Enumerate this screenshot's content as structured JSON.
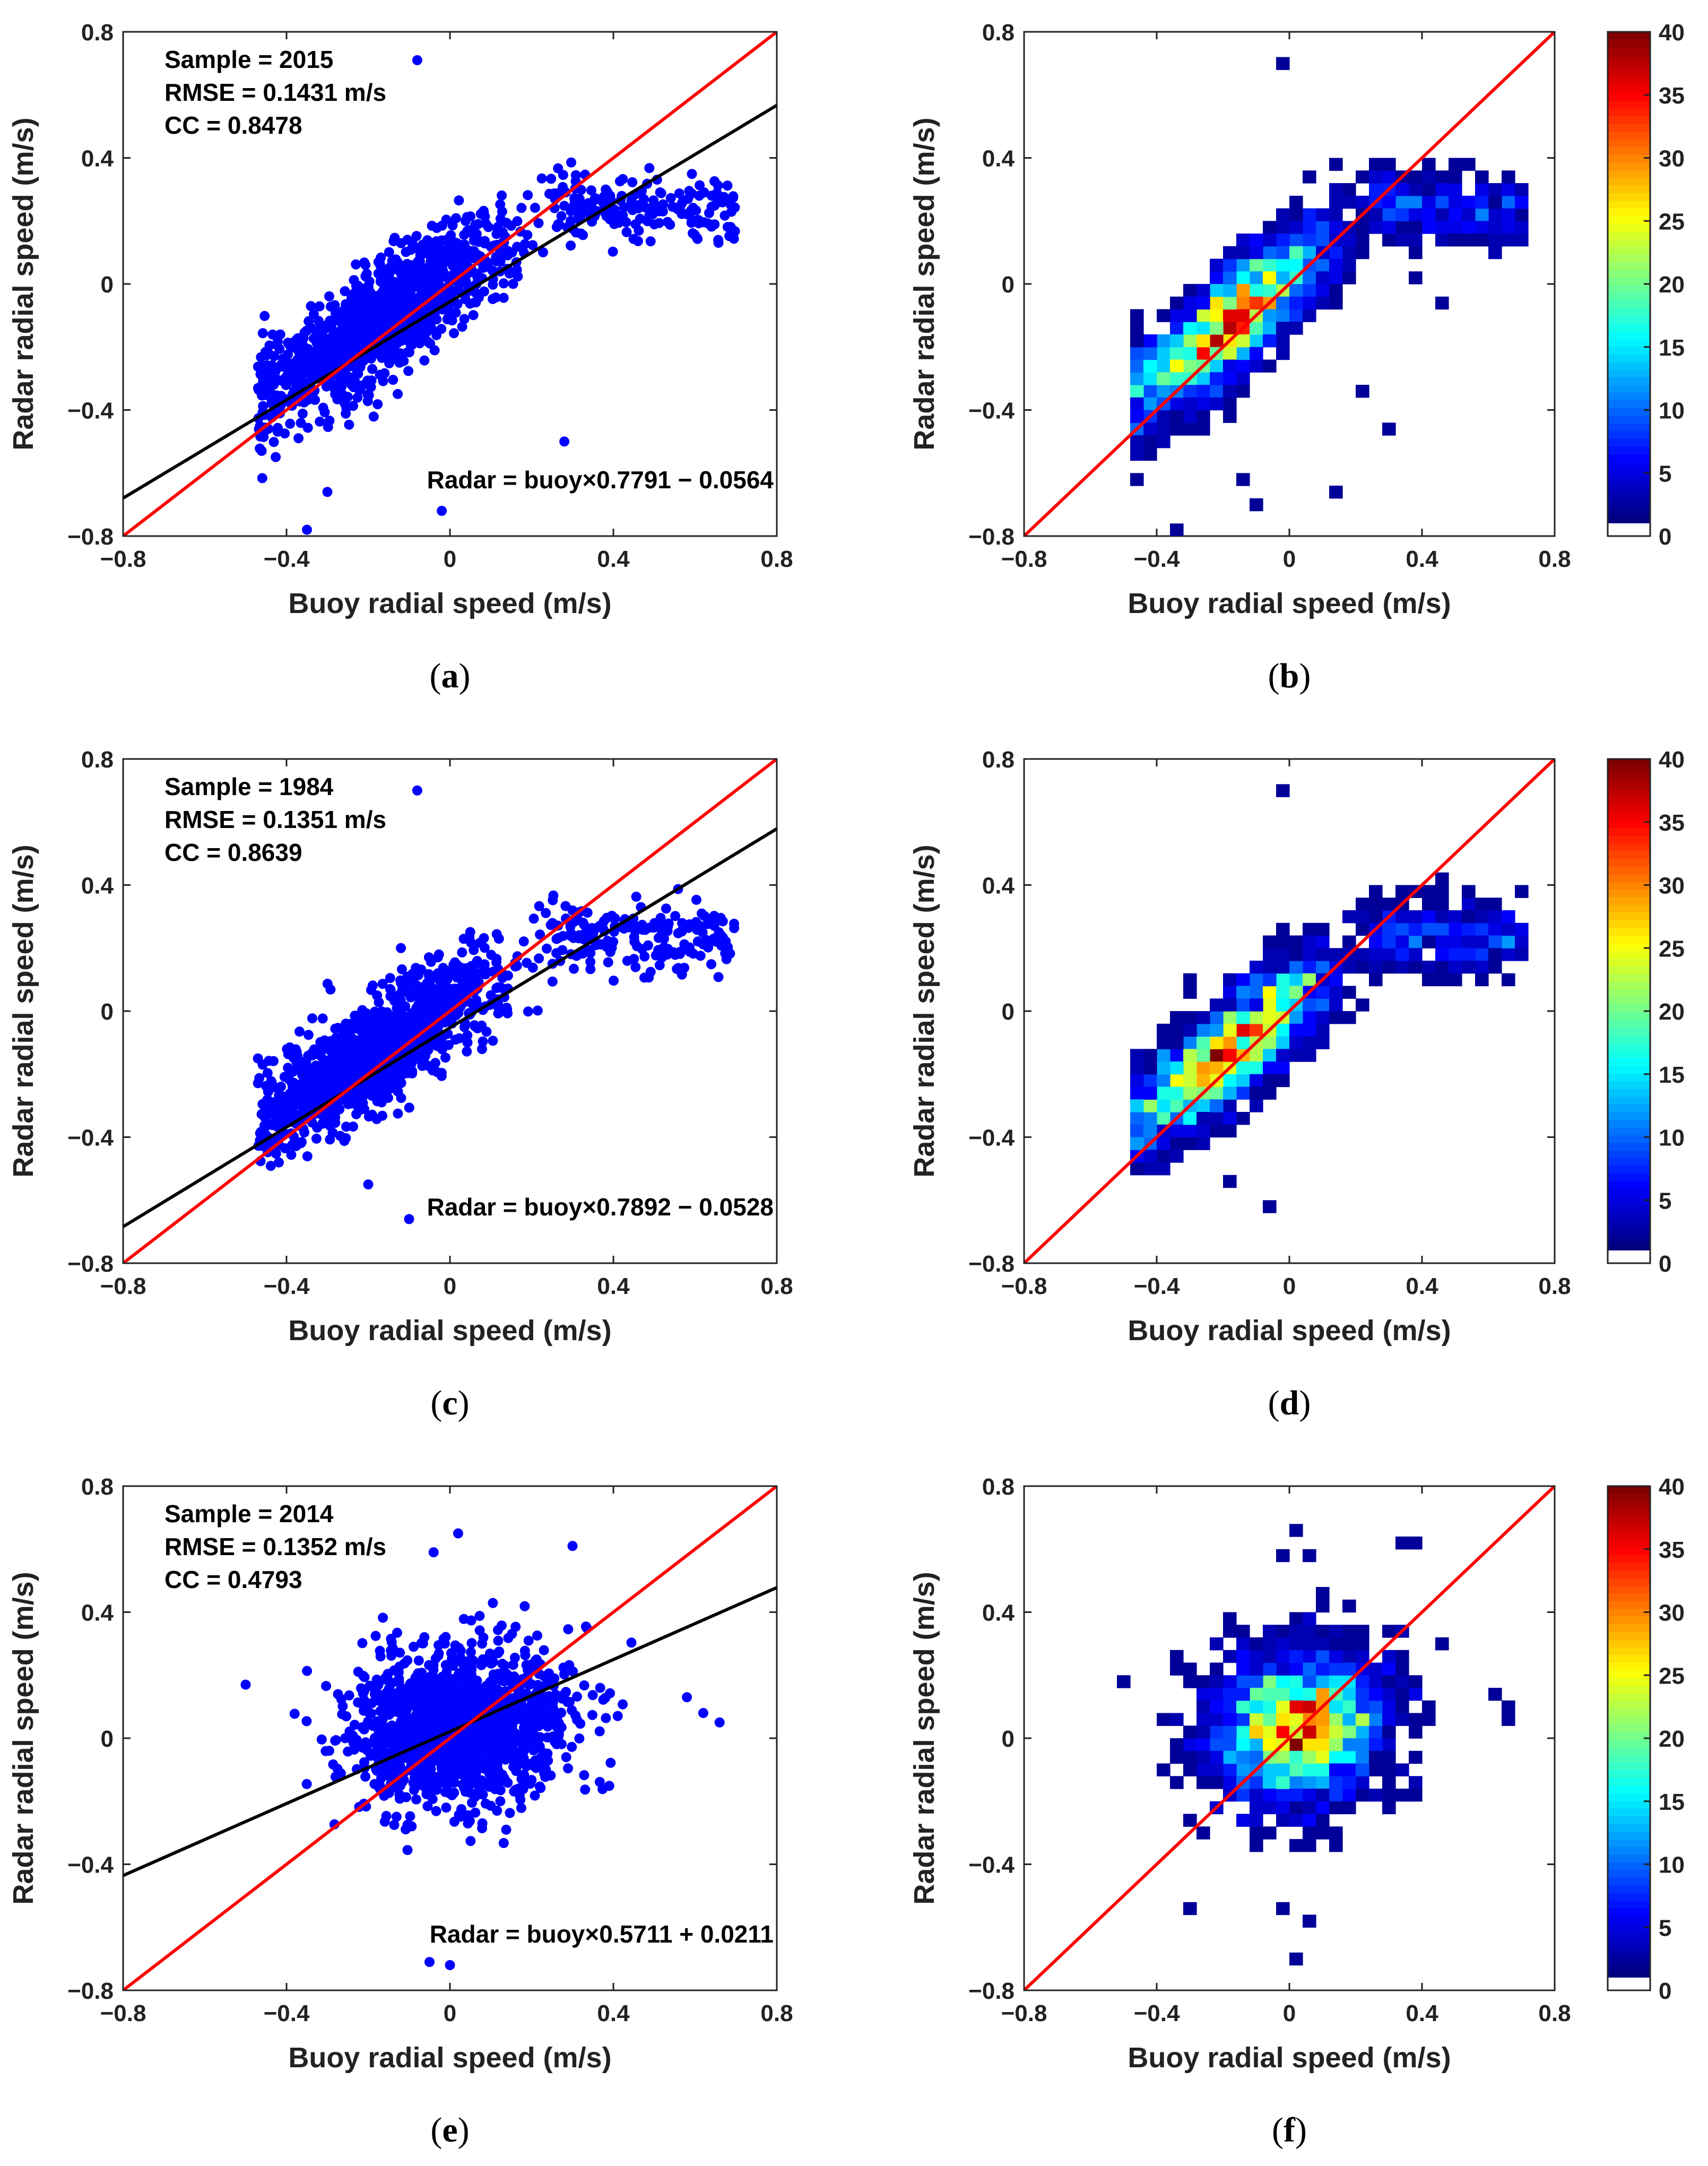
{
  "colors": {
    "scatter_point": "#0000ff",
    "one_to_one_line": "#ff0000",
    "fit_line": "#000000",
    "axes": "#222222",
    "colormap": "jet"
  },
  "chart_data": [
    {
      "id": "a",
      "type": "scatter",
      "panel_label": "a",
      "xlabel": "Buoy radial speed (m/s)",
      "ylabel": "Radar radial speed (m/s)",
      "xlim": [
        -0.8,
        0.8
      ],
      "ylim": [
        -0.8,
        0.8
      ],
      "xticks": [
        -0.8,
        -0.4,
        0,
        0.4,
        0.8
      ],
      "yticks": [
        -0.8,
        -0.4,
        0,
        0.4,
        0.8
      ],
      "xtick_labels": [
        "−0.8",
        "−0.4",
        "0",
        "0.4",
        "0.8"
      ],
      "ytick_labels": [
        "−0.8",
        "−0.4",
        "0",
        "0.4",
        "0.8"
      ],
      "stats": [
        "Sample = 2015",
        "RMSE = 0.1431 m/s",
        "CC = 0.8478"
      ],
      "fit_equation": "Radar = buoy×0.7791 − 0.0564",
      "fit": {
        "slope": 0.7791,
        "intercept": -0.0564
      },
      "sample": 2015,
      "model": "curved",
      "outliers": [
        [
          -0.08,
          0.71
        ],
        [
          -0.35,
          -0.78
        ],
        [
          0.28,
          -0.5
        ],
        [
          -0.02,
          -0.72
        ],
        [
          -0.3,
          -0.66
        ]
      ]
    },
    {
      "id": "b",
      "type": "heatmap",
      "panel_label": "b",
      "xlabel": "Buoy radial speed (m/s)",
      "ylabel": "Radar radial speed (m/s)",
      "xlim": [
        -0.8,
        0.8
      ],
      "ylim": [
        -0.8,
        0.8
      ],
      "xticks": [
        -0.8,
        -0.4,
        0,
        0.4,
        0.8
      ],
      "yticks": [
        -0.8,
        -0.4,
        0,
        0.4,
        0.8
      ],
      "xtick_labels": [
        "−0.8",
        "−0.4",
        "0",
        "0.4",
        "0.8"
      ],
      "ytick_labels": [
        "−0.8",
        "−0.4",
        "0",
        "0.4",
        "0.8"
      ],
      "bin_size": 0.04,
      "colorbar": {
        "min": 0,
        "max": 40,
        "ticks": [
          0,
          5,
          10,
          15,
          20,
          25,
          30,
          35,
          40
        ],
        "tick_labels": [
          "0",
          "5",
          "10",
          "15",
          "20",
          "25",
          "30",
          "35",
          "40"
        ]
      },
      "sample": 2015,
      "model": "curved",
      "outliers": [
        [
          -0.04,
          0.71
        ],
        [
          -0.36,
          -0.77
        ],
        [
          -0.1,
          -0.72
        ],
        [
          0.12,
          -0.68
        ],
        [
          -0.16,
          -0.64
        ],
        [
          0.3,
          -0.48
        ],
        [
          0.2,
          -0.36
        ],
        [
          0.44,
          -0.08
        ],
        [
          0.38,
          0.0
        ]
      ]
    },
    {
      "id": "c",
      "type": "scatter",
      "panel_label": "c",
      "xlabel": "Buoy radial speed (m/s)",
      "ylabel": "Radar radial speed (m/s)",
      "xlim": [
        -0.8,
        0.8
      ],
      "ylim": [
        -0.8,
        0.8
      ],
      "xticks": [
        -0.8,
        -0.4,
        0,
        0.4,
        0.8
      ],
      "yticks": [
        -0.8,
        -0.4,
        0,
        0.4,
        0.8
      ],
      "xtick_labels": [
        "−0.8",
        "−0.4",
        "0",
        "0.4",
        "0.8"
      ],
      "ytick_labels": [
        "−0.8",
        "−0.4",
        "0",
        "0.4",
        "0.8"
      ],
      "stats": [
        "Sample = 1984",
        "RMSE = 0.1351 m/s",
        "CC = 0.8639"
      ],
      "fit_equation": "Radar = buoy×0.7892 − 0.0528",
      "fit": {
        "slope": 0.7892,
        "intercept": -0.0528
      },
      "sample": 1984,
      "model": "curved",
      "outliers": [
        [
          -0.08,
          0.7
        ],
        [
          -0.12,
          0.2
        ],
        [
          -0.2,
          -0.55
        ],
        [
          -0.1,
          -0.66
        ]
      ]
    },
    {
      "id": "d",
      "type": "heatmap",
      "panel_label": "d",
      "xlabel": "Buoy radial speed (m/s)",
      "ylabel": "Radar radial speed (m/s)",
      "xlim": [
        -0.8,
        0.8
      ],
      "ylim": [
        -0.8,
        0.8
      ],
      "xticks": [
        -0.8,
        -0.4,
        0,
        0.4,
        0.8
      ],
      "yticks": [
        -0.8,
        -0.4,
        0,
        0.4,
        0.8
      ],
      "xtick_labels": [
        "−0.8",
        "−0.4",
        "0",
        "0.4",
        "0.8"
      ],
      "ytick_labels": [
        "−0.8",
        "−0.4",
        "0",
        "0.4",
        "0.8"
      ],
      "bin_size": 0.04,
      "colorbar": {
        "min": 0,
        "max": 40,
        "ticks": [
          0,
          5,
          10,
          15,
          20,
          25,
          30,
          35,
          40
        ],
        "tick_labels": [
          "0",
          "5",
          "10",
          "15",
          "20",
          "25",
          "30",
          "35",
          "40"
        ]
      },
      "sample": 1984,
      "model": "curved",
      "outliers": [
        [
          -0.04,
          0.71
        ],
        [
          -0.08,
          -0.64
        ],
        [
          -0.2,
          -0.56
        ]
      ]
    },
    {
      "id": "e",
      "type": "scatter",
      "panel_label": "e",
      "xlabel": "Buoy radial speed (m/s)",
      "ylabel": "Radar radial speed (m/s)",
      "xlim": [
        -0.8,
        0.8
      ],
      "ylim": [
        -0.8,
        0.8
      ],
      "xticks": [
        -0.8,
        -0.4,
        0,
        0.4,
        0.8
      ],
      "yticks": [
        -0.8,
        -0.4,
        0,
        0.4,
        0.8
      ],
      "xtick_labels": [
        "−0.8",
        "−0.4",
        "0",
        "0.4",
        "0.8"
      ],
      "ytick_labels": [
        "−0.8",
        "−0.4",
        "0",
        "0.4",
        "0.8"
      ],
      "stats": [
        "Sample = 2014",
        "RMSE = 0.1352 m/s",
        "CC = 0.4793"
      ],
      "fit_equation": "Radar = buoy×0.5711 + 0.0211",
      "fit": {
        "slope": 0.5711,
        "intercept": 0.0211
      },
      "sample": 2014,
      "model": "cloud",
      "outliers": [
        [
          -0.5,
          0.17
        ],
        [
          0.02,
          0.65
        ],
        [
          -0.04,
          0.59
        ],
        [
          0.3,
          0.61
        ],
        [
          0.58,
          0.13
        ],
        [
          0.66,
          0.05
        ],
        [
          0.62,
          0.08
        ],
        [
          -0.05,
          -0.71
        ],
        [
          0.0,
          -0.72
        ]
      ]
    },
    {
      "id": "f",
      "type": "heatmap",
      "panel_label": "f",
      "xlabel": "Buoy radial speed (m/s)",
      "ylabel": "Radar radial speed (m/s)",
      "xlim": [
        -0.8,
        0.8
      ],
      "ylim": [
        -0.8,
        0.8
      ],
      "xticks": [
        -0.8,
        -0.4,
        0,
        0.4,
        0.8
      ],
      "yticks": [
        -0.8,
        -0.4,
        0,
        0.4,
        0.8
      ],
      "xtick_labels": [
        "−0.8",
        "−0.4",
        "0",
        "0.4",
        "0.8"
      ],
      "ytick_labels": [
        "−0.8",
        "−0.4",
        "0",
        "0.4",
        "0.8"
      ],
      "bin_size": 0.04,
      "colorbar": {
        "min": 0,
        "max": 40,
        "ticks": [
          0,
          5,
          10,
          15,
          20,
          25,
          30,
          35,
          40
        ],
        "tick_labels": [
          "0",
          "5",
          "10",
          "15",
          "20",
          "25",
          "30",
          "35",
          "40"
        ]
      },
      "sample": 2014,
      "model": "cloud",
      "outliers": [
        [
          -0.5,
          0.19
        ],
        [
          0.02,
          0.67
        ],
        [
          -0.02,
          0.59
        ],
        [
          0.06,
          0.59
        ],
        [
          0.34,
          0.63
        ],
        [
          0.38,
          0.63
        ],
        [
          0.62,
          0.15
        ],
        [
          0.66,
          0.07
        ],
        [
          0.66,
          0.11
        ],
        [
          -0.3,
          -0.53
        ],
        [
          -0.04,
          -0.53
        ],
        [
          0.0,
          -0.69
        ],
        [
          0.06,
          -0.59
        ]
      ]
    }
  ]
}
